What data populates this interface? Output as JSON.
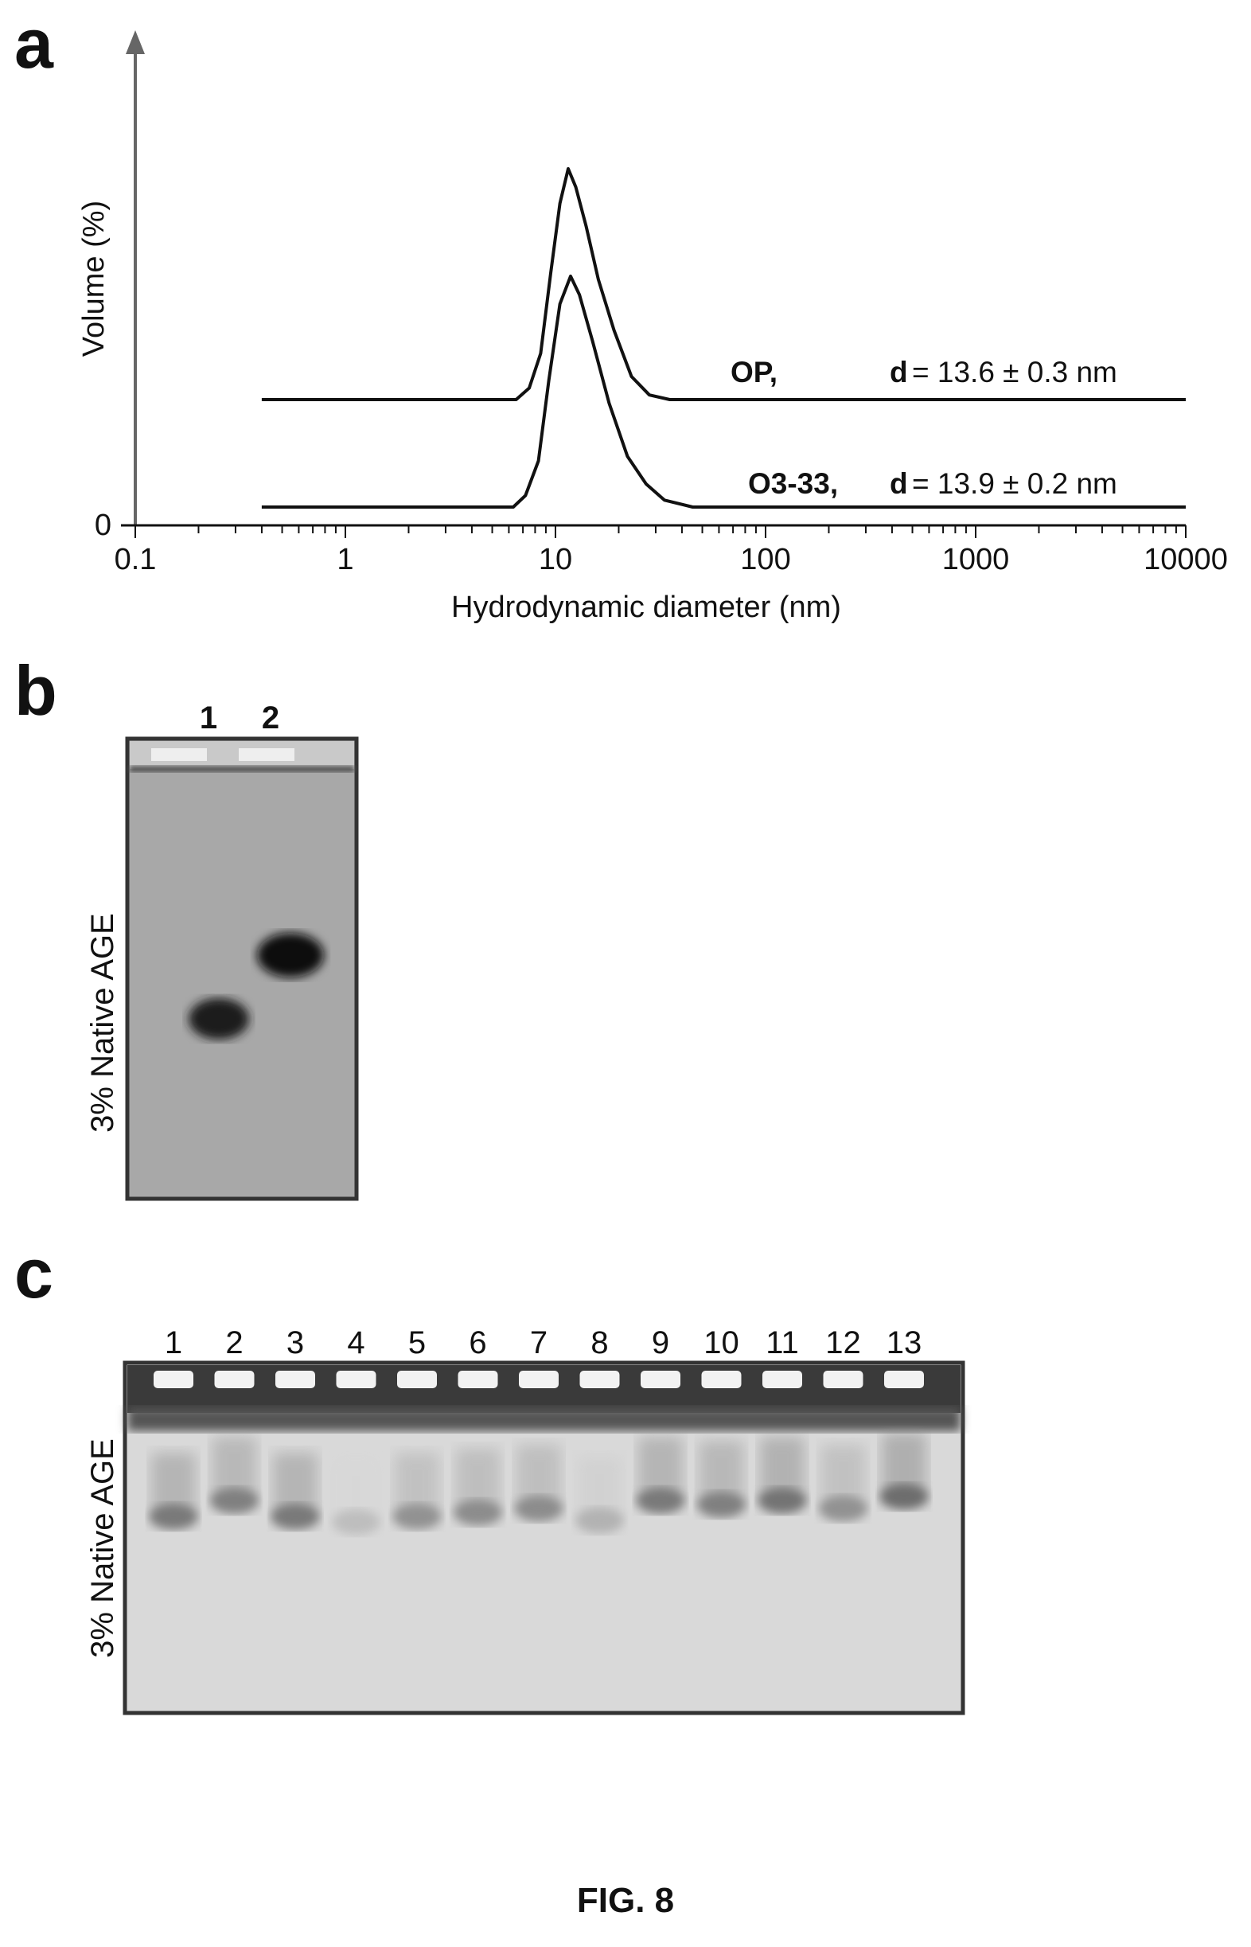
{
  "panels": {
    "a": {
      "letter": "a"
    },
    "b": {
      "letter": "b",
      "lane_labels": [
        "1",
        "2"
      ],
      "gel_label": "3% Native AGE"
    },
    "c": {
      "letter": "c",
      "lane_labels": [
        "1",
        "2",
        "3",
        "4",
        "5",
        "6",
        "7",
        "8",
        "9",
        "10",
        "11",
        "12",
        "13"
      ],
      "gel_label": "3% Native AGE"
    }
  },
  "figure_title": "FIG. 8",
  "colors": {
    "ink": "#111111",
    "gel_background_b": "#a9a9a9",
    "gel_background_c": "#d8d8d8",
    "gel_border": "#333333"
  },
  "chart_data": {
    "type": "line",
    "xlabel": "Hydrodynamic diameter (nm)",
    "ylabel": "Volume (%)",
    "x_scale": "log",
    "xlim": [
      0.1,
      10000
    ],
    "x_ticks": [
      "0.1",
      "1",
      "10",
      "100",
      "1000",
      "10000"
    ],
    "y_ticks": [
      "0"
    ],
    "series": [
      {
        "name": "OP,",
        "annotation_d": "d",
        "annotation_value": "= 13.6 ± 0.3 nm",
        "offset": 0.39,
        "points": [
          [
            0.4,
            0
          ],
          [
            6.5,
            0
          ],
          [
            7.5,
            0.05
          ],
          [
            8.5,
            0.2
          ],
          [
            9.5,
            0.55
          ],
          [
            10.5,
            0.85
          ],
          [
            11.5,
            1.0
          ],
          [
            12.5,
            0.92
          ],
          [
            14,
            0.75
          ],
          [
            16,
            0.52
          ],
          [
            19,
            0.3
          ],
          [
            23,
            0.1
          ],
          [
            28,
            0.02
          ],
          [
            35,
            0
          ],
          [
            10000,
            0
          ]
        ]
      },
      {
        "name": "O3-33,",
        "annotation_d": "d",
        "annotation_value": "= 13.9 ± 0.2 nm",
        "offset": 0.0,
        "points": [
          [
            0.4,
            0
          ],
          [
            6.3,
            0
          ],
          [
            7.2,
            0.05
          ],
          [
            8.3,
            0.2
          ],
          [
            9.3,
            0.55
          ],
          [
            10.5,
            0.88
          ],
          [
            11.8,
            1.0
          ],
          [
            13,
            0.92
          ],
          [
            15,
            0.72
          ],
          [
            18,
            0.45
          ],
          [
            22,
            0.22
          ],
          [
            27,
            0.1
          ],
          [
            33,
            0.03
          ],
          [
            45,
            0
          ],
          [
            10000,
            0
          ]
        ]
      }
    ]
  }
}
